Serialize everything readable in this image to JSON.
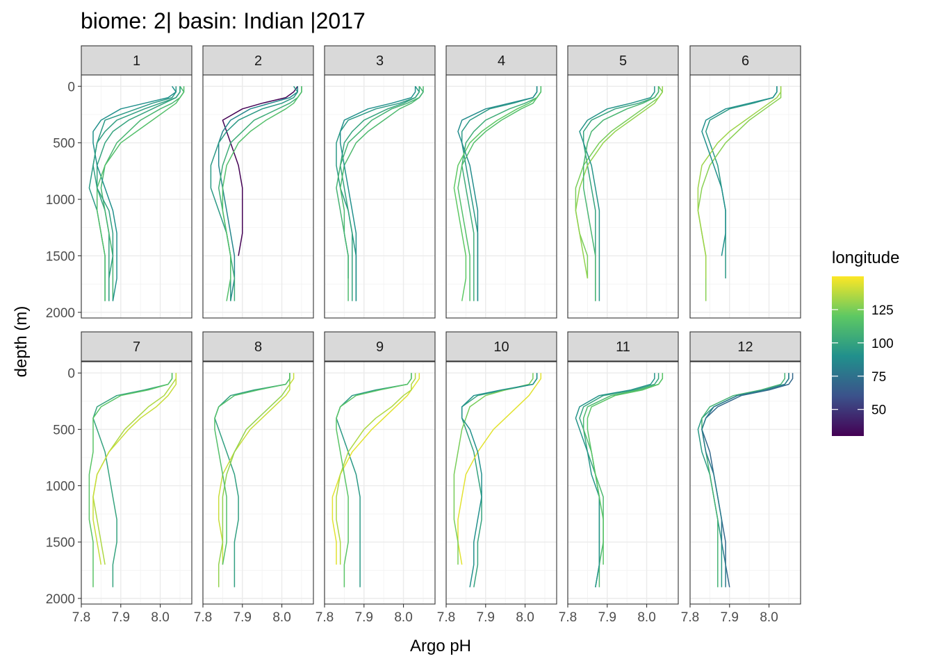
{
  "chart_data": {
    "type": "line",
    "title": "biome: 2| basin: Indian |2017",
    "xlabel": "Argo pH",
    "ylabel": "depth (m)",
    "xlim": [
      7.8,
      8.08
    ],
    "ylim": [
      2050,
      -100
    ],
    "x_ticks": [
      "7.8",
      "7.9",
      "8.0"
    ],
    "x_tick_values": [
      7.8,
      7.9,
      8.0
    ],
    "y_ticks": [
      "0",
      "500",
      "1000",
      "1500",
      "2000"
    ],
    "y_tick_values": [
      0,
      500,
      1000,
      1500,
      2000
    ],
    "grid": true,
    "facets": [
      "1",
      "2",
      "3",
      "4",
      "5",
      "6",
      "7",
      "8",
      "9",
      "10",
      "11",
      "12"
    ],
    "facet_layout": {
      "rows": 2,
      "cols": 6
    },
    "legend": {
      "title": "longitude",
      "placement": "right",
      "range": [
        30,
        150
      ],
      "ticks": [
        "50",
        "75",
        "100",
        "125"
      ],
      "tick_values": [
        50,
        75,
        100,
        125
      ],
      "colors": [
        "#440154",
        "#3b528b",
        "#21908c",
        "#5dc863",
        "#fde725"
      ]
    },
    "profile_depths": [
      0,
      50,
      100,
      150,
      200,
      300,
      400,
      500,
      700,
      900,
      1100,
      1300,
      1500,
      1700,
      1900
    ],
    "series": [
      {
        "facet": "1",
        "longitude": 95,
        "ph": [
          8.04,
          8.04,
          8.03,
          7.98,
          7.94,
          7.86,
          7.85,
          7.84,
          7.83,
          7.82,
          7.84,
          7.85,
          7.86,
          7.86,
          7.86
        ]
      },
      {
        "facet": "1",
        "longitude": 100,
        "ph": [
          8.05,
          8.05,
          8.04,
          8.01,
          7.98,
          7.92,
          7.88,
          7.86,
          7.84,
          7.84,
          7.86,
          7.87,
          7.87,
          7.87,
          7.87
        ]
      },
      {
        "facet": "1",
        "longitude": 110,
        "ph": [
          8.05,
          8.06,
          8.05,
          8.03,
          8.0,
          7.95,
          7.92,
          7.89,
          7.86,
          7.85,
          7.86,
          7.87,
          7.88,
          7.88,
          7.88
        ]
      },
      {
        "facet": "1",
        "longitude": 90,
        "ph": [
          8.03,
          8.04,
          8.02,
          7.96,
          7.9,
          7.85,
          7.83,
          7.83,
          7.84,
          7.86,
          7.88,
          7.89,
          7.89,
          7.89,
          7.88
        ]
      },
      {
        "facet": "1",
        "longitude": 115,
        "ph": [
          8.06,
          8.06,
          8.05,
          8.04,
          8.02,
          7.98,
          7.94,
          7.9,
          7.86,
          7.84,
          7.84,
          7.85,
          7.86,
          7.86,
          7.86
        ]
      },
      {
        "facet": "1",
        "longitude": 98,
        "ph": [
          8.05,
          8.05,
          8.04,
          8.0,
          7.96,
          7.89,
          7.86,
          7.84,
          7.83,
          7.84,
          7.87,
          7.88,
          7.88,
          7.87,
          7.87
        ]
      },
      {
        "facet": "2",
        "longitude": 30,
        "ph": [
          8.04,
          8.03,
          8.01,
          7.95,
          7.9,
          7.85,
          7.86,
          7.87,
          7.89,
          7.9,
          7.9,
          7.9,
          7.89,
          null,
          null
        ]
      },
      {
        "facet": "2",
        "longitude": 85,
        "ph": [
          8.04,
          8.04,
          8.02,
          7.97,
          7.92,
          7.87,
          7.85,
          7.84,
          7.84,
          7.85,
          7.86,
          7.87,
          7.88,
          7.88,
          7.87
        ]
      },
      {
        "facet": "2",
        "longitude": 95,
        "ph": [
          8.03,
          8.04,
          8.03,
          8.0,
          7.95,
          7.89,
          7.86,
          7.84,
          7.82,
          7.82,
          7.84,
          7.86,
          7.87,
          7.87,
          7.87
        ]
      },
      {
        "facet": "2",
        "longitude": 105,
        "ph": [
          8.05,
          8.05,
          8.04,
          8.02,
          7.99,
          7.93,
          7.9,
          7.87,
          7.85,
          7.84,
          7.85,
          7.86,
          7.87,
          7.88,
          7.88
        ]
      },
      {
        "facet": "2",
        "longitude": 115,
        "ph": [
          8.05,
          8.05,
          8.04,
          8.03,
          8.01,
          7.96,
          7.92,
          7.89,
          7.86,
          7.85,
          7.85,
          7.86,
          7.87,
          7.87,
          7.86
        ]
      },
      {
        "facet": "3",
        "longitude": 95,
        "ph": [
          8.03,
          8.04,
          8.03,
          7.99,
          7.93,
          7.86,
          7.84,
          7.83,
          7.83,
          7.84,
          7.86,
          7.87,
          7.88,
          7.88,
          7.88
        ]
      },
      {
        "facet": "3",
        "longitude": 100,
        "ph": [
          8.04,
          8.04,
          8.03,
          8.0,
          7.96,
          7.9,
          7.87,
          7.85,
          7.84,
          7.85,
          7.86,
          7.87,
          7.87,
          7.87,
          7.87
        ]
      },
      {
        "facet": "3",
        "longitude": 112,
        "ph": [
          8.05,
          8.05,
          8.04,
          8.02,
          7.99,
          7.95,
          7.91,
          7.88,
          7.85,
          7.84,
          7.85,
          7.85,
          7.86,
          7.86,
          7.86
        ]
      },
      {
        "facet": "3",
        "longitude": 90,
        "ph": [
          8.03,
          8.03,
          8.02,
          7.97,
          7.91,
          7.85,
          7.84,
          7.84,
          7.85,
          7.86,
          7.87,
          7.88,
          7.88,
          7.88,
          7.88
        ]
      },
      {
        "facet": "3",
        "longitude": 108,
        "ph": [
          8.04,
          8.05,
          8.04,
          8.01,
          7.97,
          7.92,
          7.89,
          7.86,
          7.84,
          7.83,
          7.84,
          7.85,
          7.86,
          7.86,
          null
        ]
      },
      {
        "facet": "4",
        "longitude": 95,
        "ph": [
          8.03,
          8.03,
          8.02,
          7.97,
          7.91,
          7.86,
          7.84,
          7.84,
          7.85,
          7.86,
          7.87,
          7.88,
          7.88,
          7.88,
          7.88
        ]
      },
      {
        "facet": "4",
        "longitude": 105,
        "ph": [
          8.04,
          8.04,
          8.03,
          8.0,
          7.96,
          7.9,
          7.87,
          7.85,
          7.84,
          7.85,
          7.86,
          7.87,
          7.87,
          7.87,
          7.87
        ]
      },
      {
        "facet": "4",
        "longitude": 120,
        "ph": [
          8.04,
          8.04,
          8.03,
          8.01,
          7.98,
          7.93,
          7.89,
          7.86,
          7.83,
          7.82,
          7.83,
          7.84,
          7.85,
          7.85,
          7.84
        ]
      },
      {
        "facet": "4",
        "longitude": 88,
        "ph": [
          8.03,
          8.03,
          8.02,
          7.96,
          7.9,
          7.84,
          7.83,
          7.84,
          7.86,
          7.87,
          7.88,
          7.88,
          7.88,
          7.88,
          7.88
        ]
      },
      {
        "facet": "4",
        "longitude": 115,
        "ph": [
          8.04,
          8.04,
          8.03,
          8.02,
          7.99,
          7.94,
          7.9,
          7.87,
          7.84,
          7.83,
          7.84,
          7.85,
          7.86,
          7.86,
          7.86
        ]
      },
      {
        "facet": "5",
        "longitude": 100,
        "ph": [
          8.03,
          8.03,
          8.02,
          7.98,
          7.92,
          7.86,
          7.84,
          7.84,
          7.85,
          7.86,
          7.87,
          7.87,
          7.87,
          7.87,
          7.87
        ]
      },
      {
        "facet": "5",
        "longitude": 125,
        "ph": [
          8.03,
          8.04,
          8.03,
          8.01,
          7.99,
          7.95,
          7.91,
          7.88,
          7.84,
          7.82,
          7.82,
          7.83,
          7.85,
          7.85,
          null
        ]
      },
      {
        "facet": "5",
        "longitude": 130,
        "ph": [
          8.04,
          8.04,
          8.03,
          8.02,
          8.0,
          7.96,
          7.92,
          7.89,
          7.85,
          7.83,
          7.82,
          7.83,
          7.84,
          7.85,
          null
        ]
      },
      {
        "facet": "5",
        "longitude": 92,
        "ph": [
          8.02,
          8.02,
          8.01,
          7.96,
          7.9,
          7.85,
          7.83,
          7.84,
          7.86,
          7.87,
          7.88,
          7.88,
          7.88,
          7.88,
          7.88
        ]
      },
      {
        "facet": "5",
        "longitude": 110,
        "ph": [
          8.03,
          8.03,
          8.02,
          7.99,
          7.95,
          7.89,
          7.86,
          7.85,
          7.84,
          7.84,
          7.85,
          7.86,
          7.87,
          7.87,
          7.87
        ]
      },
      {
        "facet": "6",
        "longitude": 95,
        "ph": [
          8.02,
          8.02,
          8.01,
          7.96,
          7.9,
          7.85,
          7.84,
          7.85,
          7.87,
          7.88,
          7.89,
          7.89,
          7.89,
          7.89,
          null
        ]
      },
      {
        "facet": "6",
        "longitude": 128,
        "ph": [
          8.03,
          8.03,
          8.03,
          8.01,
          7.99,
          7.95,
          7.92,
          7.89,
          7.85,
          7.83,
          7.82,
          7.83,
          7.84,
          7.84,
          7.84
        ]
      },
      {
        "facet": "6",
        "longitude": 132,
        "ph": [
          8.03,
          8.03,
          8.02,
          8.0,
          7.98,
          7.94,
          7.9,
          7.87,
          7.83,
          7.82,
          7.82,
          7.83,
          7.84,
          7.84,
          null
        ]
      },
      {
        "facet": "6",
        "longitude": 90,
        "ph": [
          8.02,
          8.02,
          8.01,
          7.95,
          7.89,
          7.84,
          7.83,
          7.84,
          7.86,
          7.88,
          7.89,
          7.89,
          7.88,
          null,
          null
        ]
      },
      {
        "facet": "7",
        "longitude": 100,
        "ph": [
          8.03,
          8.03,
          8.02,
          7.96,
          7.89,
          7.84,
          7.83,
          7.84,
          7.86,
          7.87,
          7.88,
          7.89,
          7.89,
          7.88,
          7.88
        ]
      },
      {
        "facet": "7",
        "longitude": 135,
        "ph": [
          8.04,
          8.04,
          8.03,
          8.02,
          8.01,
          7.97,
          7.94,
          7.91,
          7.87,
          7.84,
          7.83,
          7.84,
          7.85,
          7.86,
          null
        ]
      },
      {
        "facet": "7",
        "longitude": 140,
        "ph": [
          8.04,
          8.04,
          8.04,
          8.03,
          8.02,
          7.99,
          7.95,
          7.92,
          7.87,
          7.84,
          7.83,
          7.83,
          7.84,
          7.85,
          null
        ]
      },
      {
        "facet": "7",
        "longitude": 118,
        "ph": [
          8.03,
          8.03,
          8.02,
          7.97,
          7.9,
          7.85,
          7.83,
          7.83,
          7.83,
          7.82,
          7.82,
          7.82,
          7.83,
          7.83,
          7.83
        ]
      },
      {
        "facet": "8",
        "longitude": 98,
        "ph": [
          8.02,
          8.02,
          8.01,
          7.93,
          7.87,
          7.84,
          7.83,
          7.84,
          7.86,
          7.88,
          7.89,
          7.89,
          7.88,
          7.88,
          7.88
        ]
      },
      {
        "facet": "8",
        "longitude": 140,
        "ph": [
          8.03,
          8.03,
          8.02,
          8.02,
          8.01,
          7.98,
          7.95,
          7.92,
          7.88,
          7.85,
          7.84,
          7.84,
          7.85,
          7.85,
          null
        ]
      },
      {
        "facet": "8",
        "longitude": 130,
        "ph": [
          8.02,
          8.02,
          8.02,
          8.01,
          8.0,
          7.97,
          7.94,
          7.91,
          7.88,
          7.86,
          7.85,
          7.85,
          7.85,
          7.84,
          7.84
        ]
      },
      {
        "facet": "8",
        "longitude": 115,
        "ph": [
          8.02,
          8.02,
          8.01,
          7.94,
          7.88,
          7.84,
          7.83,
          7.83,
          7.84,
          7.85,
          7.86,
          7.86,
          7.86,
          7.85,
          null
        ]
      },
      {
        "facet": "9",
        "longitude": 95,
        "ph": [
          8.02,
          8.02,
          8.01,
          7.93,
          7.87,
          7.84,
          7.83,
          7.84,
          7.86,
          7.88,
          7.89,
          7.89,
          7.89,
          7.89,
          7.89
        ]
      },
      {
        "facet": "9",
        "longitude": 145,
        "ph": [
          8.04,
          8.04,
          8.03,
          8.02,
          8.01,
          7.98,
          7.95,
          7.92,
          7.87,
          7.84,
          7.82,
          7.82,
          7.83,
          7.83,
          null
        ]
      },
      {
        "facet": "9",
        "longitude": 135,
        "ph": [
          8.03,
          8.03,
          8.02,
          8.02,
          8.0,
          7.97,
          7.93,
          7.9,
          7.86,
          7.84,
          7.83,
          7.83,
          7.84,
          7.84,
          null
        ]
      },
      {
        "facet": "9",
        "longitude": 118,
        "ph": [
          8.02,
          8.02,
          8.01,
          7.94,
          7.88,
          7.84,
          7.83,
          7.83,
          7.84,
          7.85,
          7.86,
          7.86,
          7.86,
          7.85,
          7.85
        ]
      },
      {
        "facet": "10",
        "longitude": 100,
        "ph": [
          8.03,
          8.03,
          8.02,
          7.95,
          7.88,
          7.84,
          7.84,
          7.85,
          7.87,
          7.88,
          7.89,
          7.89,
          7.88,
          7.88,
          7.87
        ]
      },
      {
        "facet": "10",
        "longitude": 145,
        "ph": [
          8.04,
          8.04,
          8.03,
          8.02,
          8.01,
          7.98,
          7.95,
          7.92,
          7.88,
          7.85,
          7.84,
          7.83,
          7.83,
          7.84,
          null
        ]
      },
      {
        "facet": "10",
        "longitude": 125,
        "ph": [
          8.02,
          8.02,
          8.01,
          7.95,
          7.9,
          7.86,
          7.85,
          7.84,
          7.83,
          7.82,
          7.82,
          7.82,
          7.83,
          7.83,
          null
        ]
      },
      {
        "facet": "10",
        "longitude": 90,
        "ph": [
          8.03,
          8.03,
          8.02,
          7.94,
          7.87,
          7.84,
          7.84,
          7.86,
          7.88,
          7.89,
          7.89,
          7.88,
          7.87,
          7.87,
          7.86
        ]
      },
      {
        "facet": "11",
        "longitude": 100,
        "ph": [
          8.03,
          8.03,
          8.02,
          7.97,
          7.89,
          7.84,
          7.83,
          7.84,
          7.85,
          7.87,
          7.88,
          7.88,
          7.88,
          7.88,
          7.87
        ]
      },
      {
        "facet": "11",
        "longitude": 112,
        "ph": [
          8.04,
          8.04,
          8.03,
          7.98,
          7.91,
          7.85,
          7.84,
          7.84,
          7.86,
          7.87,
          7.89,
          7.89,
          7.89,
          7.88,
          7.88
        ]
      },
      {
        "facet": "11",
        "longitude": 92,
        "ph": [
          8.02,
          8.02,
          8.01,
          7.96,
          7.88,
          7.83,
          7.82,
          7.83,
          7.85,
          7.86,
          7.88,
          7.88,
          7.88,
          7.88,
          7.87
        ]
      },
      {
        "facet": "11",
        "longitude": 118,
        "ph": [
          8.04,
          8.04,
          8.03,
          7.99,
          7.92,
          7.86,
          7.85,
          7.85,
          7.86,
          7.87,
          7.88,
          7.89,
          7.89,
          7.89,
          null
        ]
      },
      {
        "facet": "12",
        "longitude": 70,
        "ph": [
          8.06,
          8.06,
          8.05,
          8.0,
          7.93,
          7.87,
          7.84,
          7.83,
          7.85,
          7.86,
          7.87,
          7.88,
          7.89,
          7.89,
          7.9
        ]
      },
      {
        "facet": "12",
        "longitude": 95,
        "ph": [
          8.05,
          8.05,
          8.04,
          7.99,
          7.92,
          7.86,
          7.83,
          7.82,
          7.83,
          7.85,
          7.86,
          7.87,
          7.88,
          7.88,
          7.88
        ]
      },
      {
        "facet": "12",
        "longitude": 108,
        "ph": [
          8.04,
          8.04,
          8.03,
          7.98,
          7.91,
          7.85,
          7.83,
          7.83,
          7.84,
          7.85,
          7.86,
          7.87,
          7.87,
          7.87,
          7.87
        ]
      },
      {
        "facet": "12",
        "longitude": 80,
        "ph": [
          8.05,
          8.05,
          8.04,
          7.99,
          7.92,
          7.86,
          7.84,
          7.83,
          7.84,
          7.86,
          7.87,
          7.88,
          7.88,
          7.89,
          7.89
        ]
      }
    ]
  }
}
